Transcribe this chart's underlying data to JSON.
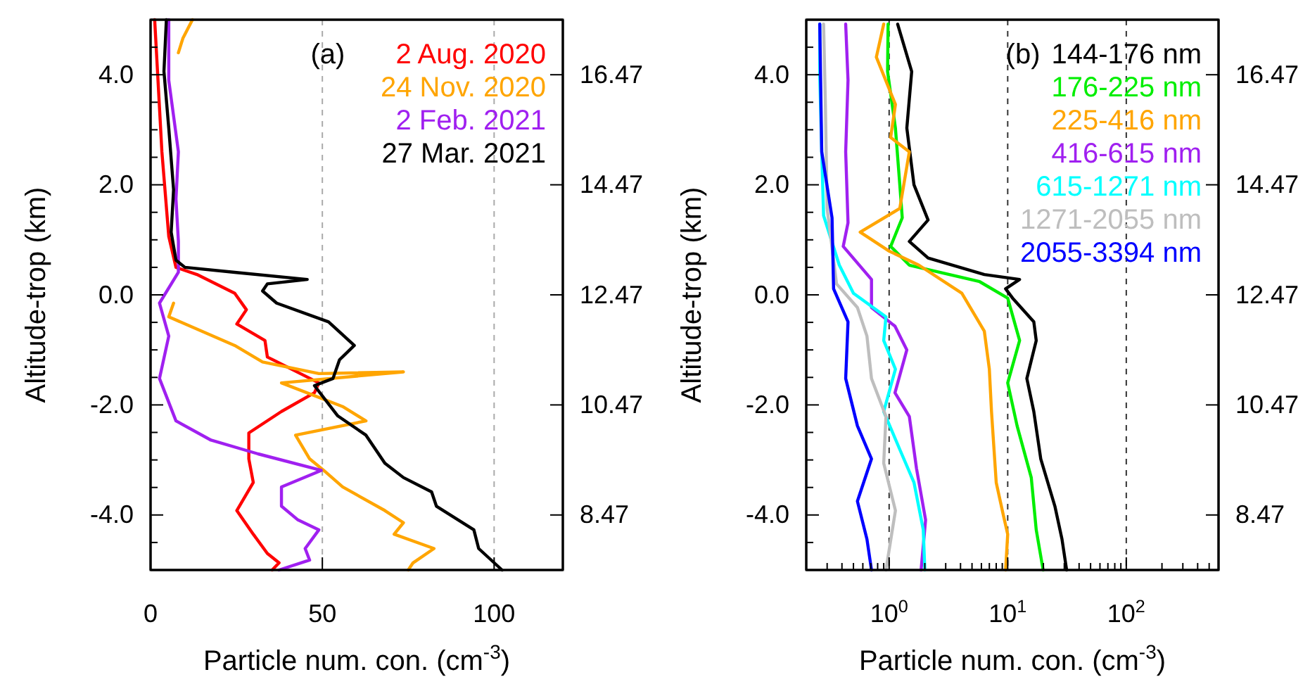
{
  "chart_data": [
    {
      "type": "line",
      "xlabel": "Particle num. con. (cm$^{-3}$)",
      "ylabel": "Altitude-trop (km)",
      "annotations": [
        "(a)"
      ],
      "xlim": [
        0,
        120
      ],
      "xticks": [
        0,
        50,
        100
      ],
      "ylim": [
        -5,
        5
      ],
      "yticks": [
        {
          "value": -4.5,
          "label": null
        },
        {
          "value": -4,
          "label": "-4.0"
        },
        {
          "value": -3.5,
          "label": null
        },
        {
          "value": -3,
          "label": null
        },
        {
          "value": -2.5,
          "label": null
        },
        {
          "value": -2,
          "label": "-2.0"
        },
        {
          "value": -1.5,
          "label": null
        },
        {
          "value": -1,
          "label": null
        },
        {
          "value": -0.5,
          "label": null
        },
        {
          "value": 0,
          "label": "0.0"
        },
        {
          "value": 0.5,
          "label": null
        },
        {
          "value": 1,
          "label": null
        },
        {
          "value": 1.5,
          "label": null
        },
        {
          "value": 2,
          "label": "2.0"
        },
        {
          "value": 2.5,
          "label": null
        },
        {
          "value": 3,
          "label": null
        },
        {
          "value": 3.5,
          "label": null
        },
        {
          "value": 4,
          "label": "4.0"
        },
        {
          "value": 4.5,
          "label": null
        }
      ],
      "y2lim": [
        7.47,
        17.47
      ],
      "y2ticks": [
        8.47,
        10.47,
        12.47,
        14.47,
        16.47
      ],
      "grid": "x",
      "legend": "top right",
      "line_style": "solid",
      "marker": "none",
      "series": [
        {
          "name": "2 Aug. 2020",
          "color": "#ff0000",
          "x": [
            1.2,
            3.3,
            5.3,
            7.4,
            13.5,
            24.5,
            27.9,
            25.1,
            33.3,
            34,
            49,
            47.7,
            38.1,
            28.6,
            28.6,
            29.9,
            25.1,
            29.9,
            34,
            37.4,
            35.4
          ],
          "values": [
            5,
            2.6,
            1.06,
            0.5,
            0.37,
            0.03,
            -0.27,
            -0.53,
            -0.83,
            -1.13,
            -1.6,
            -1.78,
            -2.12,
            -2.51,
            -2.98,
            -3.41,
            -3.92,
            -4.35,
            -4.7,
            -4.87,
            -5
          ]
        },
        {
          "name": "24 Nov. 2020",
          "color": "#ffa500",
          "x": [
            12.2,
            9.4,
            8.1,
            null,
            6.7,
            5.3,
            24.5,
            32.6,
            49,
            73.6,
            38.1,
            55.9,
            62.7,
            42.2,
            46.3,
            50.4,
            55.9,
            68.2,
            73.6,
            70.9,
            82.5,
            76.4,
            75
          ],
          "values": [
            5,
            4.66,
            4.4,
            null,
            -0.15,
            -0.4,
            -0.92,
            -1.22,
            -1.43,
            -1.4,
            -1.6,
            -2.03,
            -2.29,
            -2.55,
            -2.98,
            -3.19,
            -3.49,
            -3.92,
            -4.14,
            -4.35,
            -4.61,
            -4.87,
            -5
          ]
        },
        {
          "name": "2 Feb. 2021",
          "color": "#a020f0",
          "x": [
            5.3,
            5.3,
            8.1,
            7.4,
            8.1,
            8.1,
            2.6,
            5.3,
            2.6,
            7.4,
            17.6,
            31.3,
            49.7,
            38.1,
            38.1,
            42.9,
            49,
            45,
            46.3,
            37.4
          ],
          "values": [
            5,
            3.9,
            2.6,
            1.74,
            0.97,
            0.41,
            -0.15,
            -0.75,
            -1.52,
            -2.29,
            -2.64,
            -2.89,
            -3.19,
            -3.49,
            -3.84,
            -4.09,
            -4.27,
            -4.61,
            -4.82,
            -5
          ]
        },
        {
          "name": "27 Mar. 2021",
          "color": "#000000",
          "x": [
            4.6,
            3.9,
            5.3,
            6.7,
            6,
            7.4,
            10,
            24.5,
            45.6,
            34,
            32.6,
            36.7,
            51.8,
            59.3,
            55,
            53.1,
            47.7,
            54.5,
            62.7,
            68.2,
            73.6,
            81.8,
            83.2,
            94.1,
            95.5,
            102.3
          ],
          "values": [
            5,
            4.06,
            3.03,
            1.91,
            1.14,
            0.63,
            0.5,
            0.41,
            0.28,
            0.2,
            0.07,
            -0.15,
            -0.49,
            -0.92,
            -1.18,
            -1.52,
            -1.65,
            -2.2,
            -2.55,
            -3.06,
            -3.32,
            -3.58,
            -3.84,
            -4.27,
            -4.61,
            -5
          ]
        }
      ]
    },
    {
      "type": "line",
      "xlabel": "Particle num. con. (cm$^{-3}$)",
      "ylabel": "Altitude-trop (km)",
      "annotations": [
        "(b)"
      ],
      "log": "x",
      "xlim": [
        0.2,
        600
      ],
      "xticks": [
        {
          "value": 0.2,
          "label": null
        },
        {
          "value": 0.3,
          "label": null
        },
        {
          "value": 0.4,
          "label": null
        },
        {
          "value": 0.5,
          "label": null
        },
        {
          "value": 0.6,
          "label": null
        },
        {
          "value": 0.7,
          "label": null
        },
        {
          "value": 0.8,
          "label": null
        },
        {
          "value": 0.9,
          "label": null
        },
        {
          "value": 1,
          "label": "10$^{0}$"
        },
        {
          "value": 2,
          "label": null
        },
        {
          "value": 3,
          "label": null
        },
        {
          "value": 4,
          "label": null
        },
        {
          "value": 5,
          "label": null
        },
        {
          "value": 6,
          "label": null
        },
        {
          "value": 7,
          "label": null
        },
        {
          "value": 8,
          "label": null
        },
        {
          "value": 9,
          "label": null
        },
        {
          "value": 10,
          "label": "10$^{1}$"
        },
        {
          "value": 20,
          "label": null
        },
        {
          "value": 30,
          "label": null
        },
        {
          "value": 40,
          "label": null
        },
        {
          "value": 50,
          "label": null
        },
        {
          "value": 60,
          "label": null
        },
        {
          "value": 70,
          "label": null
        },
        {
          "value": 80,
          "label": null
        },
        {
          "value": 90,
          "label": null
        },
        {
          "value": 100,
          "label": "10$^{2}$"
        },
        {
          "value": 200,
          "label": null
        },
        {
          "value": 300,
          "label": null
        },
        {
          "value": 400,
          "label": null
        },
        {
          "value": 500,
          "label": null
        }
      ],
      "ylim": [
        -5,
        5
      ],
      "yticks": [
        {
          "value": -4.5,
          "label": null
        },
        {
          "value": -4,
          "label": "-4.0"
        },
        {
          "value": -3.5,
          "label": null
        },
        {
          "value": -3,
          "label": null
        },
        {
          "value": -2.5,
          "label": null
        },
        {
          "value": -2,
          "label": "-2.0"
        },
        {
          "value": -1.5,
          "label": null
        },
        {
          "value": -1,
          "label": null
        },
        {
          "value": -0.5,
          "label": null
        },
        {
          "value": 0,
          "label": "0.0"
        },
        {
          "value": 0.5,
          "label": null
        },
        {
          "value": 1,
          "label": null
        },
        {
          "value": 1.5,
          "label": null
        },
        {
          "value": 2,
          "label": "2.0"
        },
        {
          "value": 2.5,
          "label": null
        },
        {
          "value": 3,
          "label": null
        },
        {
          "value": 3.5,
          "label": null
        },
        {
          "value": 4,
          "label": "4.0"
        },
        {
          "value": 4.5,
          "label": null
        }
      ],
      "y2lim": [
        7.47,
        17.47
      ],
      "y2ticks": [
        8.47,
        10.47,
        12.47,
        14.47,
        16.47
      ],
      "grid": "x",
      "legend": "top right",
      "line_style": "solid",
      "marker": "none",
      "series": [
        {
          "name": "144-176 nm",
          "color": "#000000",
          "x": [
            1.18,
            1.55,
            1.41,
            1.62,
            2.13,
            1.48,
            2.13,
            6.35,
            12.6,
            9.6,
            11,
            16.6,
            17.4,
            14.5,
            16.6,
            19,
            25,
            28.7,
            31.4
          ],
          "values": [
            4.92,
            4.06,
            3.03,
            2,
            1.36,
            0.97,
            0.67,
            0.37,
            0.28,
            0.11,
            -0.06,
            -0.49,
            -0.83,
            -1.52,
            -2.12,
            -2.98,
            -3.84,
            -4.44,
            -5
          ]
        },
        {
          "name": "176-225 nm",
          "color": "#00ee00",
          "x": [
            0.98,
            0.97,
            1.13,
            1.23,
            1.29,
            1.03,
            1.48,
            5.8,
            10,
            12.6,
            10,
            12,
            15.8,
            17.4,
            19.9
          ],
          "values": [
            4.92,
            4.06,
            3.03,
            2,
            1.4,
            0.88,
            0.54,
            0.24,
            -0.06,
            -0.83,
            -1.6,
            -2.38,
            -3.32,
            -4.27,
            -5
          ]
        },
        {
          "name": "225-416 nm",
          "color": "#ffa500",
          "x": [
            0.9,
            0.78,
            1.13,
            1.03,
            1.48,
            1.23,
            0.57,
            0.99,
            1.78,
            4.1,
            6.35,
            7,
            7.3,
            8,
            9.2,
            10,
            9.6
          ],
          "values": [
            4.92,
            4.32,
            3.46,
            2.86,
            2.6,
            1.57,
            1.14,
            0.8,
            0.54,
            0.03,
            -0.66,
            -1.35,
            -2.12,
            -3.41,
            -4.01,
            -4.35,
            -5
          ]
        },
        {
          "name": "416-615 nm",
          "color": "#a020f0",
          "x": [
            0.43,
            0.45,
            0.43,
            0.45,
            0.41,
            0.71,
            0.71,
            1.12,
            1.41,
            1.12,
            1.48,
            1.7,
            2.03,
            1.86
          ],
          "values": [
            4.92,
            3.9,
            2.6,
            1.31,
            0.88,
            0.28,
            -0.23,
            -0.57,
            -1,
            -1.78,
            -2.21,
            -3.15,
            -4.09,
            -5
          ]
        },
        {
          "name": "615-1271 nm",
          "color": "#00ffff",
          "x": [
            0.26,
            0.26,
            0.27,
            0.28,
            0.38,
            0.5,
            0.94,
            0.9,
            1.13,
            0.9,
            1.23,
            1.62,
            1.94,
            2
          ],
          "values": [
            4.92,
            3.97,
            2.6,
            1.44,
            0.54,
            0.03,
            -0.4,
            -0.83,
            -1.35,
            -2.12,
            -2.81,
            -3.41,
            -4.27,
            -5
          ]
        },
        {
          "name": "1271-2055 nm",
          "color": "#bebebe",
          "x": [
            0.28,
            0.29,
            0.3,
            0.36,
            0.54,
            0.65,
            0.71,
            0.94,
            0.9,
            1.13,
            0.94
          ],
          "values": [
            4.92,
            3.46,
            1.57,
            0.2,
            -0.23,
            -0.75,
            -1.52,
            -2.21,
            -3.06,
            -3.92,
            -5
          ]
        },
        {
          "name": "2055-3394 nm",
          "color": "#0000ff",
          "x": [
            0.26,
            0.27,
            0.33,
            0.34,
            0.45,
            0.43,
            0.54,
            0.71,
            0.54,
            0.65,
            0.71
          ],
          "values": [
            4.92,
            2.6,
            1.4,
            0.11,
            -0.49,
            -1.52,
            -2.38,
            -2.98,
            -3.75,
            -4.44,
            -5
          ]
        }
      ]
    }
  ]
}
